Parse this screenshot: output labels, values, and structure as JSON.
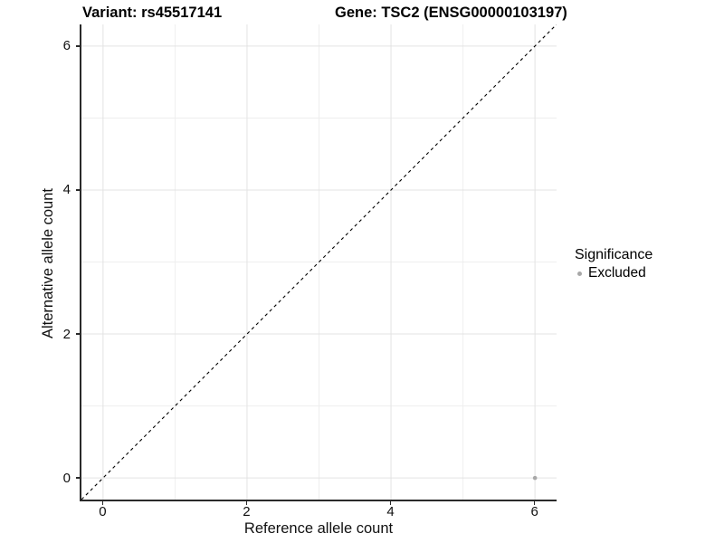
{
  "chart_data": {
    "type": "scatter",
    "title_left": "Variant: rs45517141",
    "title_right": "Gene: TSC2 (ENSG00000103197)",
    "xlabel": "Reference allele count",
    "ylabel": "Alternative allele count",
    "xlim": [
      -0.3,
      6.3
    ],
    "ylim": [
      -0.3,
      6.3
    ],
    "xticks": [
      0,
      2,
      4,
      6
    ],
    "yticks": [
      0,
      2,
      4,
      6
    ],
    "minor_xticks": [
      1,
      3,
      5
    ],
    "minor_yticks": [
      1,
      3,
      5
    ],
    "grid": "on",
    "reference_line": {
      "type": "identity y=x",
      "style": "dashed",
      "color": "#000000"
    },
    "series": [
      {
        "name": "Excluded",
        "color": "#a8a8a8",
        "points": [
          {
            "x": 6,
            "y": 0
          }
        ]
      }
    ],
    "legend": {
      "title": "Significance",
      "position": "right",
      "entries": [
        "Excluded"
      ]
    }
  },
  "colors": {
    "axis": "#2a2a2a",
    "grid_major": "#e3e3e3",
    "grid_minor": "#eeeeee",
    "tick_text": "#111111",
    "point": "#a8a8a8",
    "reference_line": "#000000",
    "background": "#ffffff"
  }
}
